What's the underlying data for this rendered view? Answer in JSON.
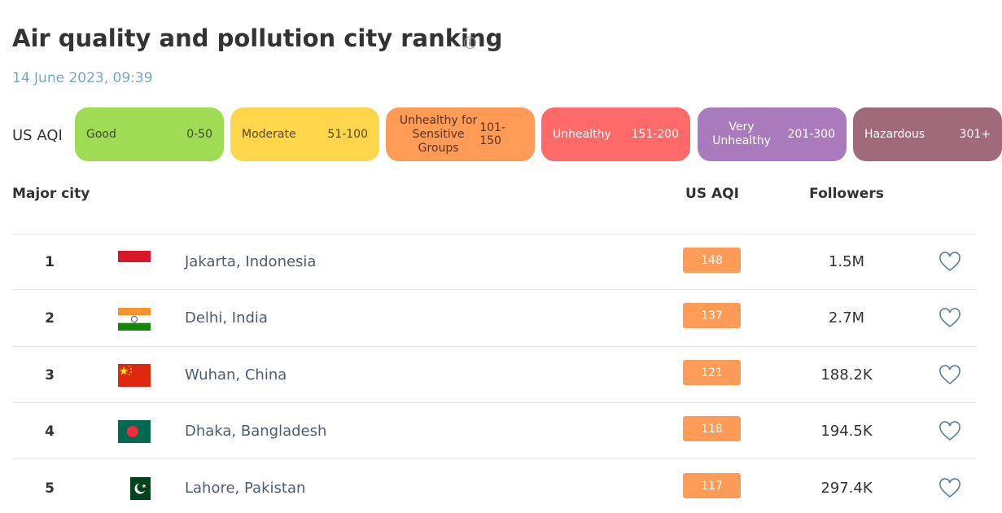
{
  "header": {
    "title": "Air quality and pollution city ranking",
    "timestamp": "14 June 2023, 09:39"
  },
  "legend": {
    "label": "US AQI",
    "levels": [
      {
        "name": "Good",
        "range": "0-50"
      },
      {
        "name": "Moderate",
        "range": "51-100"
      },
      {
        "name": "Unhealthy for Sensitive Groups",
        "range": "101-150"
      },
      {
        "name": "Unhealthy",
        "range": "151-200"
      },
      {
        "name": "Very Unhealthy",
        "range": "201-300"
      },
      {
        "name": "Hazardous",
        "range": "301+"
      }
    ]
  },
  "table": {
    "columns": [
      "Major city",
      "US AQI",
      "Followers"
    ],
    "rows": [
      {
        "rank": "1",
        "city": "Jakarta, Indonesia",
        "aqi": "148",
        "followers": "1.5M"
      },
      {
        "rank": "2",
        "city": "Delhi, India",
        "aqi": "137",
        "followers": "2.7M"
      },
      {
        "rank": "3",
        "city": "Wuhan, China",
        "aqi": "121",
        "followers": "188.2K"
      },
      {
        "rank": "4",
        "city": "Dhaka, Bangladesh",
        "aqi": "118",
        "followers": "194.5K"
      },
      {
        "rank": "5",
        "city": "Lahore, Pakistan",
        "aqi": "117",
        "followers": "297.4K"
      }
    ]
  }
}
